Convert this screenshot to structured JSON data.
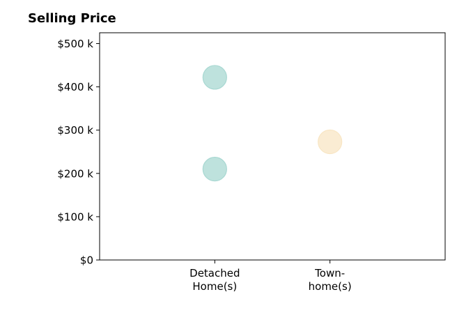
{
  "chart_data": {
    "type": "scatter",
    "title": "Selling Price",
    "xlabel": "",
    "ylabel": "",
    "categories": [
      [
        "Detached",
        "Home(s)"
      ],
      [
        "Town-",
        "home(s)"
      ]
    ],
    "xlim": [
      -1,
      2
    ],
    "ylim": [
      0,
      525000
    ],
    "yticks": [
      {
        "value": 0,
        "label": "$0"
      },
      {
        "value": 100000,
        "label": "$100 k"
      },
      {
        "value": 200000,
        "label": "$200 k"
      },
      {
        "value": 300000,
        "label": "$300 k"
      },
      {
        "value": 400000,
        "label": "$400 k"
      },
      {
        "value": 500000,
        "label": "$500 k"
      }
    ],
    "grid": false,
    "points": [
      {
        "category": 0,
        "value": 422000,
        "color": "#a8d8d2"
      },
      {
        "category": 0,
        "value": 210000,
        "color": "#a8d8d2"
      },
      {
        "category": 1,
        "value": 273000,
        "color": "#f8e6c4"
      }
    ]
  }
}
